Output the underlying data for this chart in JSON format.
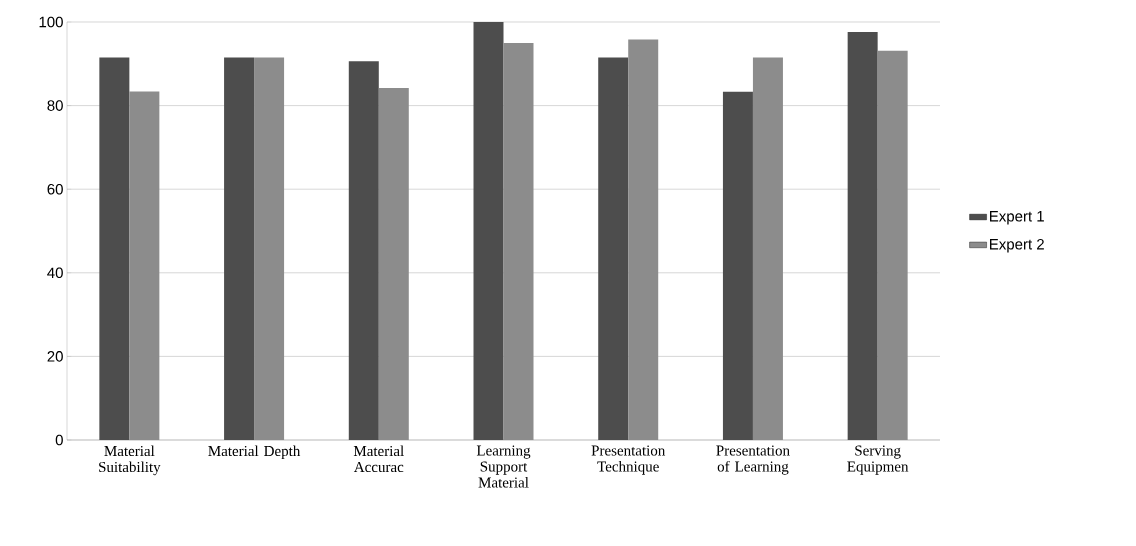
{
  "chart_data": {
    "type": "bar",
    "categories": [
      "Material Suitability",
      "Material Depth",
      "Material Accurac",
      "Learning Support Material",
      "Presentation Technique",
      "Presentation of Learning",
      "Serving Equipmen"
    ],
    "series": [
      {
        "name": "Expert 1",
        "color": "#4d4d4d",
        "values": [
          91.5,
          91.5,
          90.6,
          100,
          91.5,
          83.3,
          97.6
        ]
      },
      {
        "name": "Expert 2",
        "color": "#8c8c8c",
        "values": [
          83.4,
          91.5,
          84.2,
          95,
          95.8,
          91.5,
          93.1
        ]
      }
    ],
    "ylim": [
      0,
      100
    ],
    "yticks": [
      0,
      20,
      40,
      60,
      80,
      100
    ],
    "grid": "y",
    "legend": "right"
  }
}
